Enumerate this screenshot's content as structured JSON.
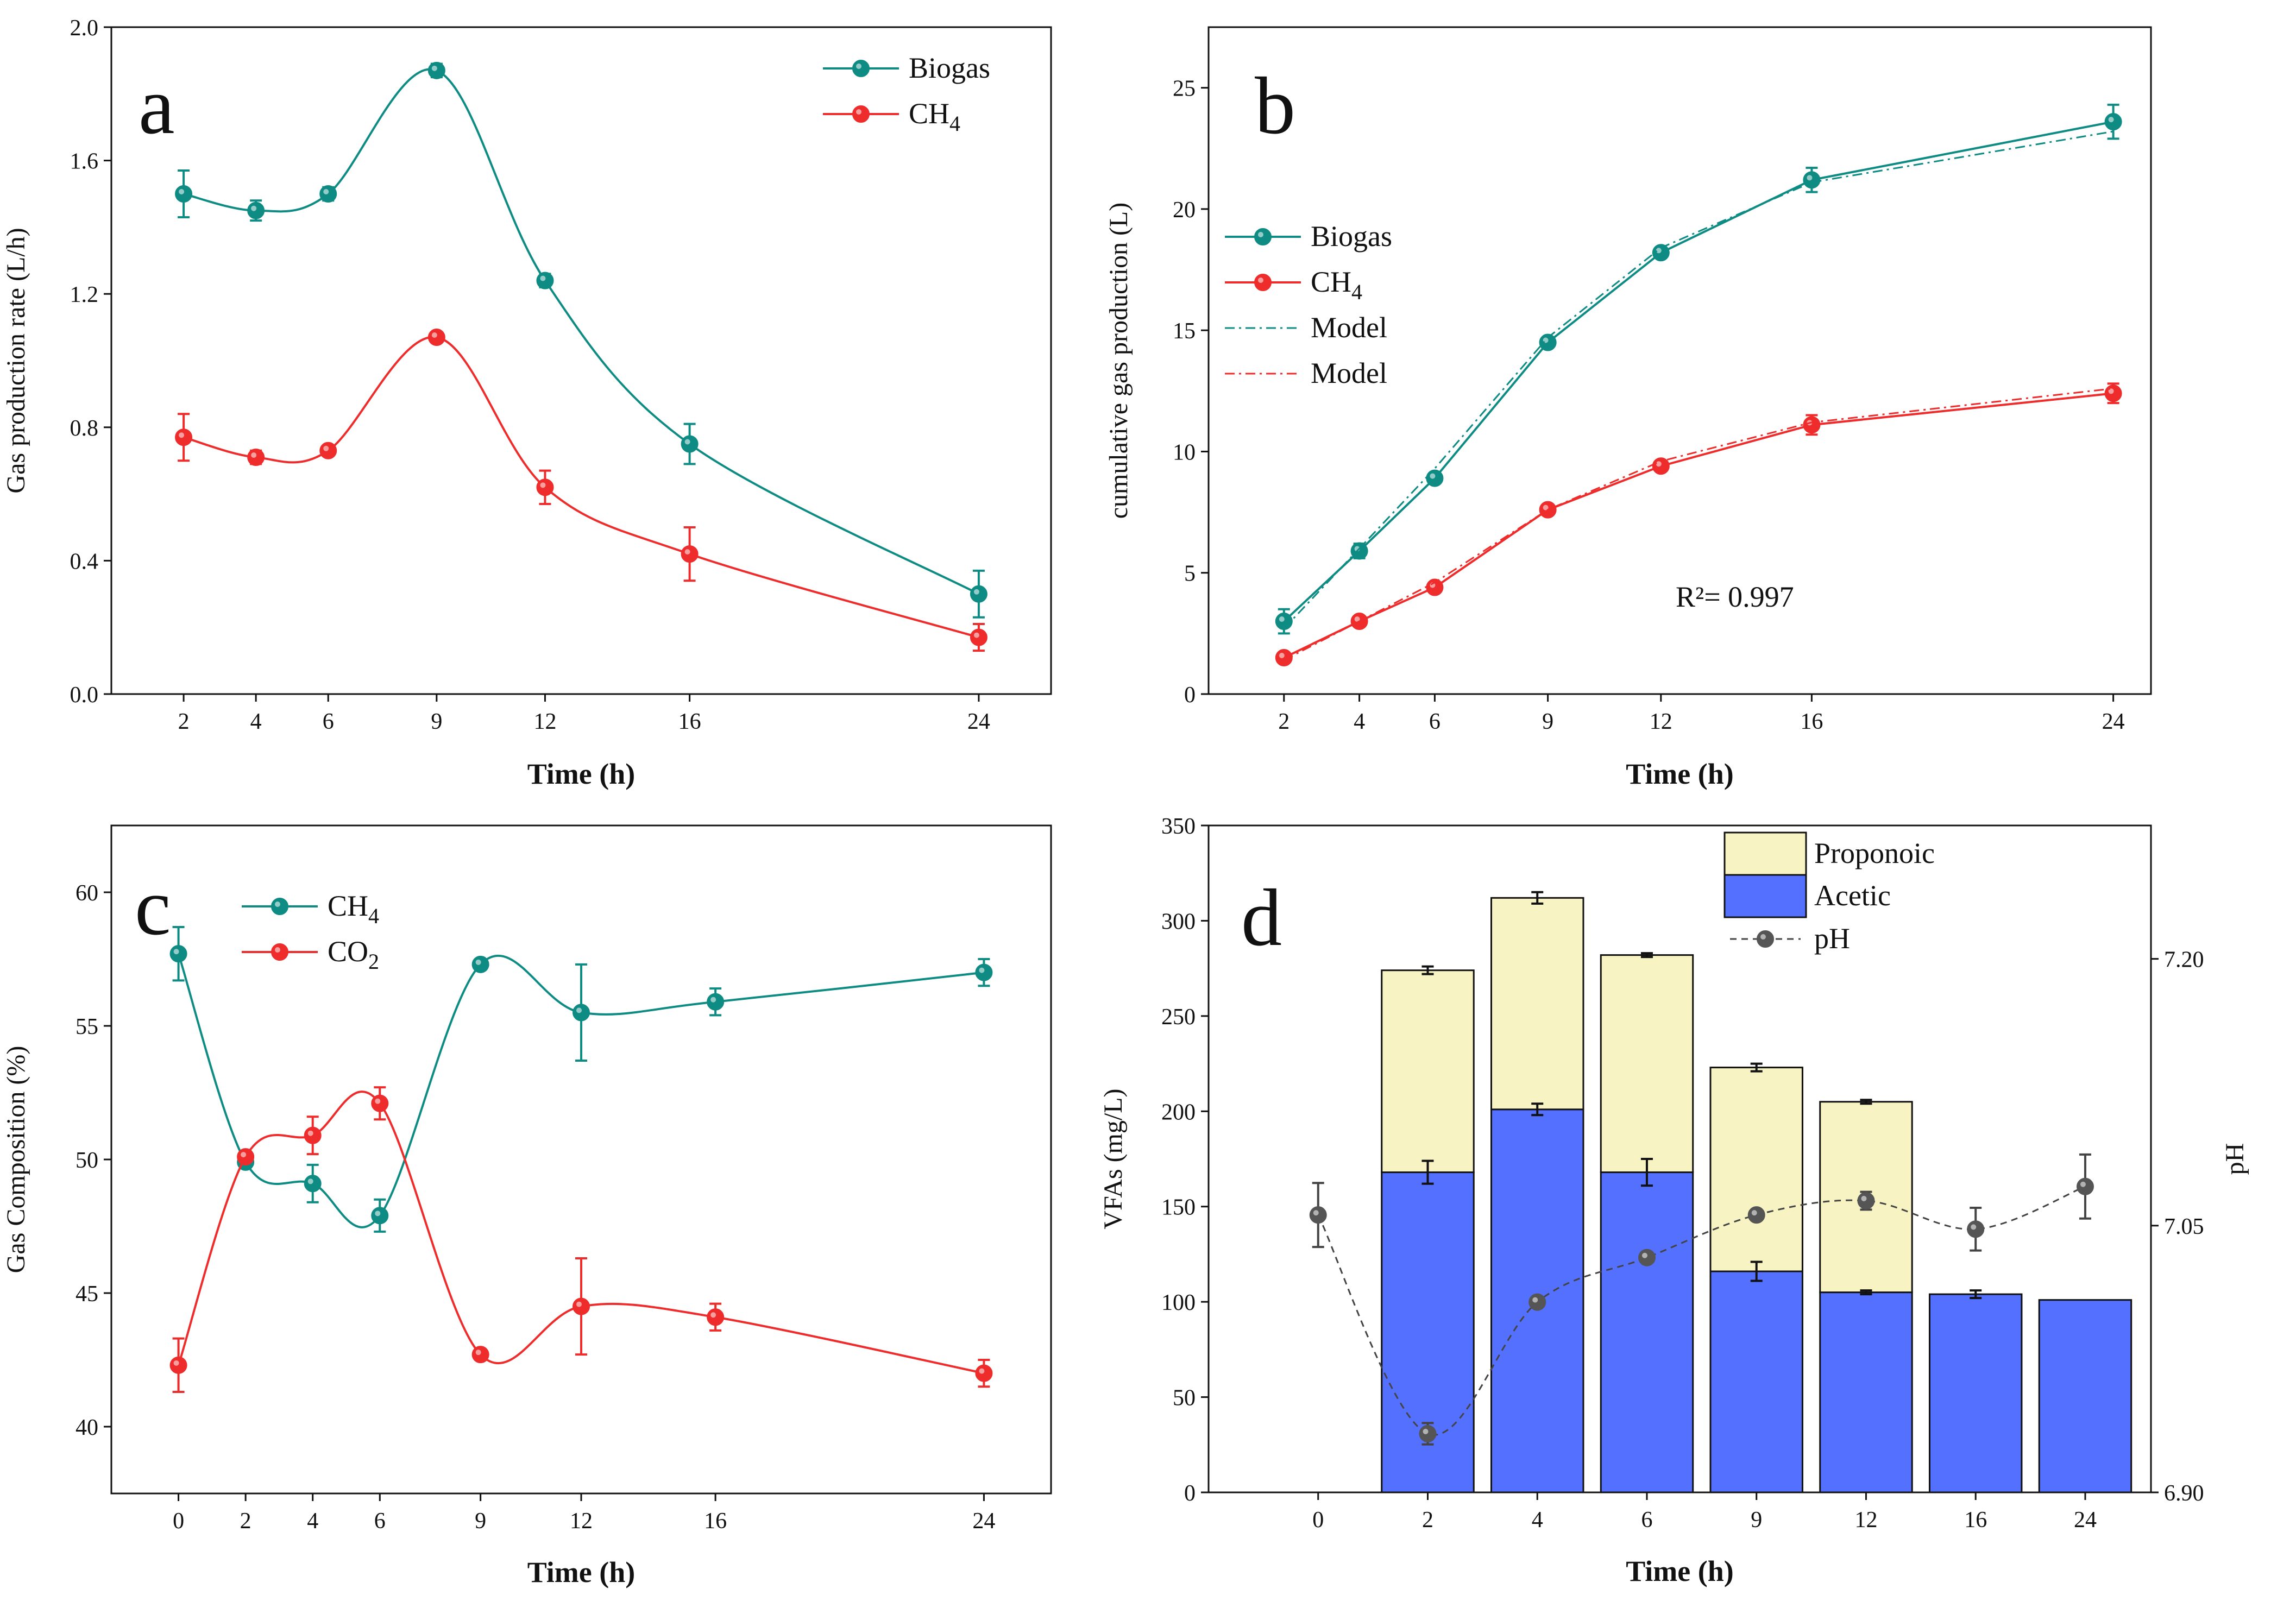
{
  "colors": {
    "teal": "#0E8C84",
    "red": "#EE2C2C",
    "acetic": "#5470FF",
    "proponoic": "#F7F3C2",
    "ph": "#555555",
    "axis": "#111111"
  },
  "chart_data": [
    {
      "id": "a",
      "type": "line",
      "panel_label": "a",
      "xlabel": "Time (h)",
      "ylabel": "Gas production rate (L/h)",
      "x_ticks": [
        2,
        4,
        6,
        9,
        12,
        16,
        24
      ],
      "xlim": [
        0,
        26
      ],
      "ylim": [
        0,
        2.0
      ],
      "y_ticks": [
        "0.0",
        "0.4",
        "0.8",
        "1.2",
        "1.6",
        "2.0"
      ],
      "y_tick_values": [
        0,
        0.4,
        0.8,
        1.2,
        1.6,
        2.0
      ],
      "legend_position": "top-right",
      "series": [
        {
          "name": "Biogas",
          "color_key": "teal",
          "x": [
            2,
            4,
            6,
            9,
            12,
            16,
            24
          ],
          "y": [
            1.5,
            1.45,
            1.5,
            1.87,
            1.24,
            0.75,
            0.3
          ],
          "err": [
            0.07,
            0.03,
            0.02,
            0.02,
            0.02,
            0.06,
            0.07
          ]
        },
        {
          "name": "CH4",
          "color_key": "red",
          "x": [
            2,
            4,
            6,
            9,
            12,
            16,
            24
          ],
          "y": [
            0.77,
            0.71,
            0.73,
            1.07,
            0.62,
            0.42,
            0.17
          ],
          "err": [
            0.07,
            0.02,
            0.01,
            0.01,
            0.05,
            0.08,
            0.04
          ]
        }
      ]
    },
    {
      "id": "b",
      "type": "line",
      "panel_label": "b",
      "xlabel": "Time (h)",
      "ylabel": "cumulative gas production (L)",
      "x_ticks": [
        2,
        4,
        6,
        9,
        12,
        16,
        24
      ],
      "xlim": [
        0,
        25
      ],
      "ylim": [
        0,
        27.5
      ],
      "y_ticks": [
        "0",
        "5",
        "10",
        "15",
        "20",
        "25"
      ],
      "y_tick_values": [
        0,
        5,
        10,
        15,
        20,
        25
      ],
      "legend_position": "top-left",
      "annotation": "R²= 0.997",
      "series": [
        {
          "name": "Biogas",
          "color_key": "teal",
          "x": [
            2,
            4,
            6,
            9,
            12,
            16,
            24
          ],
          "y": [
            3.0,
            5.9,
            8.9,
            14.5,
            18.2,
            21.2,
            23.6
          ],
          "err": [
            0.5,
            0.3,
            0.2,
            0.2,
            0.2,
            0.5,
            0.7
          ]
        },
        {
          "name": "CH4",
          "color_key": "red",
          "x": [
            2,
            4,
            6,
            9,
            12,
            16,
            24
          ],
          "y": [
            1.5,
            3.0,
            4.4,
            7.6,
            9.4,
            11.1,
            12.4
          ],
          "err": [
            0.2,
            0.2,
            0.2,
            0.2,
            0.2,
            0.4,
            0.4
          ]
        },
        {
          "name": "Model",
          "color_key": "teal",
          "model": true,
          "x": [
            2,
            4,
            6,
            9,
            12,
            16,
            24
          ],
          "y": [
            2.7,
            6.0,
            9.3,
            14.7,
            18.4,
            21.1,
            23.2
          ]
        },
        {
          "name": "Model",
          "color_key": "red",
          "model": true,
          "x": [
            2,
            4,
            6,
            9,
            12,
            16,
            24
          ],
          "y": [
            1.4,
            3.0,
            4.6,
            7.6,
            9.6,
            11.2,
            12.6
          ]
        }
      ]
    },
    {
      "id": "c",
      "type": "line",
      "panel_label": "c",
      "xlabel": "Time (h)",
      "ylabel": "Gas Composition (%)",
      "x_ticks": [
        0,
        2,
        4,
        6,
        9,
        12,
        16,
        24
      ],
      "xlim": [
        -2,
        26
      ],
      "ylim": [
        37.5,
        62.5
      ],
      "y_ticks": [
        "40",
        "45",
        "50",
        "55",
        "60"
      ],
      "y_tick_values": [
        40,
        45,
        50,
        55,
        60
      ],
      "legend_position": "top-left",
      "series": [
        {
          "name": "CH4",
          "color_key": "teal",
          "x": [
            0,
            2,
            4,
            6,
            9,
            12,
            16,
            24
          ],
          "y": [
            57.7,
            49.9,
            49.1,
            47.9,
            57.3,
            55.5,
            55.9,
            57.0
          ],
          "err": [
            1.0,
            0.2,
            0.7,
            0.6,
            0.2,
            1.8,
            0.5,
            0.5
          ]
        },
        {
          "name": "CO2",
          "color_key": "red",
          "x": [
            0,
            2,
            4,
            6,
            9,
            12,
            16,
            24
          ],
          "y": [
            42.3,
            50.1,
            50.9,
            52.1,
            42.7,
            44.5,
            44.1,
            42.0
          ],
          "err": [
            1.0,
            0.2,
            0.7,
            0.6,
            0.2,
            1.8,
            0.5,
            0.5
          ]
        }
      ]
    },
    {
      "id": "d",
      "type": "bar",
      "panel_label": "d",
      "xlabel": "Time (h)",
      "ylabel": "VFAs (mg/L)",
      "ylabel_right": "pH",
      "categories": [
        "0",
        "2",
        "4",
        "6",
        "9",
        "12",
        "16",
        "24"
      ],
      "ylim": [
        0,
        350
      ],
      "y_ticks": [
        "0",
        "50",
        "100",
        "150",
        "200",
        "250",
        "300",
        "350"
      ],
      "y_tick_values": [
        0,
        50,
        100,
        150,
        200,
        250,
        300,
        350
      ],
      "y2lim": [
        6.9,
        7.275
      ],
      "y2_ticks": [
        "6.90",
        "7.05",
        "7.20"
      ],
      "y2_tick_values": [
        6.9,
        7.05,
        7.2
      ],
      "legend_position": "top-center",
      "series": [
        {
          "name": "Acetic",
          "color_key": "acetic",
          "values": [
            0,
            168,
            201,
            168,
            116,
            105,
            104,
            101
          ],
          "err": [
            0,
            6,
            3,
            7,
            5,
            1,
            2,
            0
          ]
        },
        {
          "name": "Proponoic",
          "color_key": "proponoic",
          "values": [
            0,
            106,
            111,
            114,
            107,
            100,
            0,
            0
          ],
          "err": [
            0,
            2,
            3,
            1,
            2,
            0,
            0,
            0
          ]
        },
        {
          "name": "pH",
          "color_key": "ph",
          "axis": "right",
          "values": [
            7.056,
            6.933,
            7.007,
            7.032,
            7.056,
            7.064,
            7.048,
            7.072
          ],
          "err": [
            0.018,
            0.006,
            0.0,
            0.0,
            0.0,
            0.005,
            0.012,
            0.018
          ]
        }
      ]
    }
  ]
}
